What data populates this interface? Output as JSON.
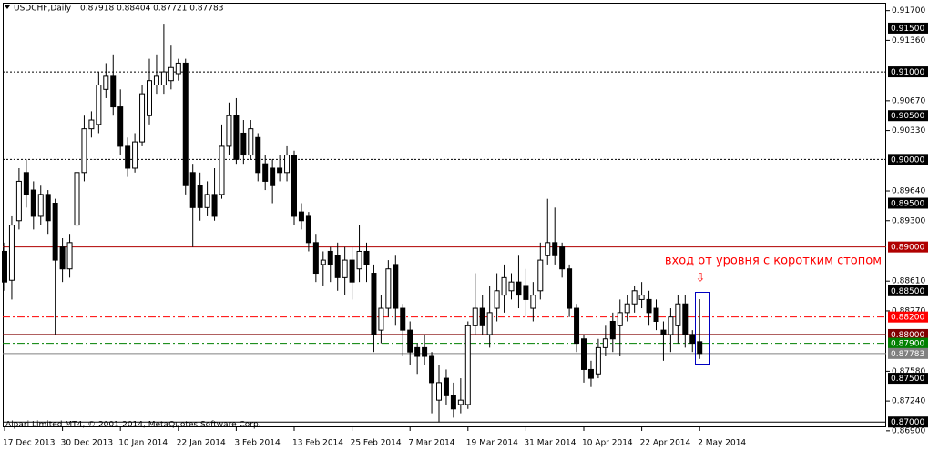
{
  "chart_data": {
    "type": "candlestick",
    "title": "USDCHF,Daily",
    "header_values": "0.87918 0.88404 0.87721 0.87783",
    "footer": "Alpari Limited MT4, © 2001-2014, MetaQuotes Software Corp.",
    "annotation": "вход от уровня с коротким стопом",
    "annotation_arrow": "⇩",
    "categories": [
      "17 Dec 2013",
      null,
      null,
      null,
      null,
      null,
      null,
      null,
      "30 Dec 2013",
      null,
      null,
      null,
      null,
      null,
      null,
      null,
      "10 Jan 2014",
      null,
      null,
      null,
      null,
      null,
      null,
      null,
      "22 Jan 2014",
      null,
      null,
      null,
      null,
      null,
      null,
      null,
      "3 Feb 2014",
      null,
      null,
      null,
      null,
      null,
      null,
      null,
      "13 Feb 2014",
      null,
      null,
      null,
      null,
      null,
      null,
      null,
      "25 Feb 2014",
      null,
      null,
      null,
      null,
      null,
      null,
      null,
      "7 Mar 2014",
      null,
      null,
      null,
      null,
      null,
      null,
      null,
      "19 Mar 2014",
      null,
      null,
      null,
      null,
      null,
      null,
      null,
      "31 Mar 2014",
      null,
      null,
      null,
      null,
      null,
      null,
      null,
      "10 Apr 2014",
      null,
      null,
      null,
      null,
      null,
      null,
      null,
      "22 Apr 2014",
      null,
      null,
      null,
      null,
      null,
      null,
      null,
      "2 May 2014"
    ],
    "open": [
      0.8895,
      0.8862,
      0.893,
      0.8985,
      0.8965,
      0.8935,
      0.896,
      0.895,
      0.89,
      0.8875,
      0.8925,
      0.8985,
      0.9035,
      0.904,
      0.908,
      0.9095,
      0.906,
      0.9015,
      0.899,
      0.902,
      0.905,
      0.9085,
      0.9085,
      0.909,
      0.9098,
      0.911,
      0.8985,
      0.897,
      0.8945,
      0.896,
      0.896,
      0.9015,
      0.905,
      0.903,
      0.9005,
      0.9025,
      0.8995,
      0.899,
      0.899,
      0.8985,
      0.9005,
      0.894,
      0.8935,
      0.8905,
      0.888,
      0.8895,
      0.889,
      0.8865,
      0.8885,
      0.8875,
      0.8895,
      0.887,
      0.8805,
      0.883,
      0.888,
      0.883,
      0.8805,
      0.8785,
      0.8785,
      0.8775,
      0.8725,
      0.875,
      0.873,
      0.872,
      0.872,
      0.881,
      0.883,
      0.88,
      0.883,
      0.8845,
      0.885,
      0.886,
      0.8855,
      0.883,
      0.885,
      0.889,
      0.8905,
      0.89,
      0.8875,
      0.883,
      0.8795,
      0.876,
      0.8755,
      0.8785,
      0.8815,
      0.881,
      0.8825,
      0.8835,
      0.884,
      0.884,
      0.883,
      0.8805,
      0.88,
      0.881,
      0.8835,
      0.88,
      0.87918
    ],
    "high": [
      0.8905,
      0.8935,
      0.899,
      0.9,
      0.8975,
      0.897,
      0.8965,
      0.8955,
      0.891,
      0.8915,
      0.903,
      0.905,
      0.9055,
      0.91,
      0.911,
      0.912,
      0.908,
      0.9025,
      0.903,
      0.9085,
      0.9115,
      0.912,
      0.9155,
      0.913,
      0.9115,
      0.9115,
      0.8995,
      0.8985,
      0.8975,
      0.899,
      0.904,
      0.9065,
      0.907,
      0.9045,
      0.9045,
      0.903,
      0.9005,
      0.9,
      0.9005,
      0.9015,
      0.901,
      0.895,
      0.894,
      0.8915,
      0.8895,
      0.89,
      0.8905,
      0.89,
      0.89,
      0.8925,
      0.8905,
      0.888,
      0.8845,
      0.8885,
      0.889,
      0.8835,
      0.8815,
      0.879,
      0.88,
      0.878,
      0.8765,
      0.876,
      0.8745,
      0.875,
      0.8815,
      0.887,
      0.8845,
      0.8855,
      0.887,
      0.888,
      0.887,
      0.889,
      0.8875,
      0.886,
      0.8905,
      0.8955,
      0.8945,
      0.8905,
      0.888,
      0.8835,
      0.88,
      0.877,
      0.8795,
      0.881,
      0.8825,
      0.884,
      0.8845,
      0.8855,
      0.886,
      0.885,
      0.884,
      0.8815,
      0.883,
      0.8845,
      0.8845,
      0.8805,
      0.88404
    ],
    "low": [
      0.885,
      0.884,
      0.892,
      0.8945,
      0.892,
      0.8925,
      0.8915,
      0.88,
      0.886,
      0.8865,
      0.892,
      0.8975,
      0.9025,
      0.903,
      0.907,
      0.905,
      0.9005,
      0.898,
      0.8985,
      0.9015,
      0.904,
      0.9075,
      0.9075,
      0.908,
      0.909,
      0.896,
      0.89,
      0.893,
      0.8935,
      0.893,
      0.8955,
      0.9005,
      0.8995,
      0.8995,
      0.9,
      0.8975,
      0.8965,
      0.895,
      0.8975,
      0.8975,
      0.8925,
      0.892,
      0.8895,
      0.886,
      0.8855,
      0.886,
      0.885,
      0.8845,
      0.884,
      0.886,
      0.886,
      0.878,
      0.879,
      0.882,
      0.881,
      0.8775,
      0.8765,
      0.8755,
      0.8765,
      0.871,
      0.87,
      0.872,
      0.8705,
      0.871,
      0.8715,
      0.88,
      0.88,
      0.8785,
      0.8815,
      0.8825,
      0.884,
      0.883,
      0.882,
      0.8815,
      0.884,
      0.888,
      0.888,
      0.8865,
      0.882,
      0.878,
      0.8745,
      0.874,
      0.875,
      0.8775,
      0.878,
      0.8775,
      0.8815,
      0.8825,
      0.883,
      0.881,
      0.8805,
      0.877,
      0.878,
      0.879,
      0.8785,
      0.878,
      0.87721
    ],
    "close": [
      0.886,
      0.8925,
      0.8975,
      0.896,
      0.8935,
      0.896,
      0.893,
      0.8885,
      0.8875,
      0.8905,
      0.8985,
      0.9035,
      0.9045,
      0.9085,
      0.9095,
      0.906,
      0.9015,
      0.899,
      0.902,
      0.9075,
      0.909,
      0.9095,
      0.91,
      0.9105,
      0.911,
      0.897,
      0.8945,
      0.8945,
      0.896,
      0.8935,
      0.9015,
      0.905,
      0.9,
      0.9005,
      0.9035,
      0.8985,
      0.8975,
      0.897,
      0.8985,
      0.9005,
      0.8935,
      0.893,
      0.8905,
      0.887,
      0.8885,
      0.888,
      0.8865,
      0.8885,
      0.886,
      0.8895,
      0.888,
      0.88,
      0.883,
      0.8875,
      0.883,
      0.8805,
      0.878,
      0.8775,
      0.8775,
      0.8745,
      0.8745,
      0.873,
      0.8715,
      0.8725,
      0.881,
      0.883,
      0.881,
      0.8825,
      0.885,
      0.8865,
      0.886,
      0.8845,
      0.884,
      0.8845,
      0.8885,
      0.8905,
      0.889,
      0.8875,
      0.883,
      0.879,
      0.876,
      0.875,
      0.8785,
      0.8795,
      0.8795,
      0.8825,
      0.8835,
      0.885,
      0.8845,
      0.8825,
      0.8815,
      0.88,
      0.882,
      0.8835,
      0.88,
      0.879,
      0.87783
    ],
    "ylim": [
      0.8694,
      0.9179
    ],
    "yticks": [
      {
        "value": 0.917,
        "label": "0.91700"
      },
      {
        "value": 0.9136,
        "label": "0.91360"
      },
      {
        "value": 0.9067,
        "label": "0.90670"
      },
      {
        "value": 0.9033,
        "label": "0.90330"
      },
      {
        "value": 0.8964,
        "label": "0.89640"
      },
      {
        "value": 0.893,
        "label": "0.89300"
      },
      {
        "value": 0.8861,
        "label": "0.88610"
      },
      {
        "value": 0.8827,
        "label": "0.88270"
      },
      {
        "value": 0.8758,
        "label": "0.87580"
      },
      {
        "value": 0.8724,
        "label": "0.87240"
      },
      {
        "value": 0.869,
        "label": "0.86900"
      }
    ],
    "levels": [
      {
        "value": 0.915,
        "label": "0.91500",
        "color": "#000000"
      },
      {
        "value": 0.91,
        "label": "0.91000",
        "color": "#000000",
        "line": "dotted"
      },
      {
        "value": 0.905,
        "label": "0.90500",
        "color": "#000000"
      },
      {
        "value": 0.9,
        "label": "0.90000",
        "color": "#000000",
        "line": "dotted"
      },
      {
        "value": 0.895,
        "label": "0.89500",
        "color": "#000000"
      },
      {
        "value": 0.89,
        "label": "0.89000",
        "color": "#b00000",
        "line": "solid"
      },
      {
        "value": 0.885,
        "label": "0.88500",
        "color": "#000000"
      },
      {
        "value": 0.882,
        "label": "0.88200",
        "color": "#ff0000",
        "line": "dashdot"
      },
      {
        "value": 0.88,
        "label": "0.88000",
        "color": "#800000",
        "line": "solid"
      },
      {
        "value": 0.879,
        "label": "0.87900",
        "color": "#008000",
        "line": "dashdot"
      },
      {
        "value": 0.87783,
        "label": "0.87783",
        "color": "#808080",
        "line": "solid"
      },
      {
        "value": 0.875,
        "label": "0.87500",
        "color": "#000000"
      },
      {
        "value": 0.87,
        "label": "0.87000",
        "color": "#000000",
        "line": "solid"
      }
    ],
    "up_color": "#ffffff",
    "down_color": "#000000"
  }
}
